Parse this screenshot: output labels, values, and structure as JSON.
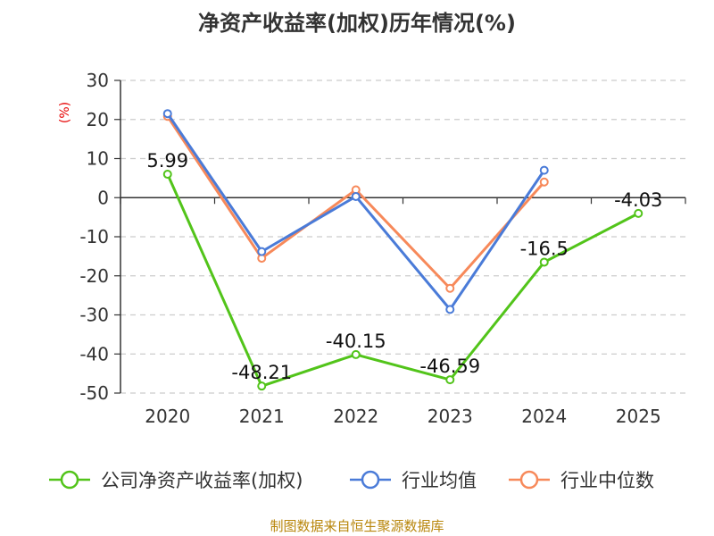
{
  "chart_data": {
    "type": "line",
    "title": "净资产收益率(加权)历年情况(%)",
    "ylabel": "(%)",
    "xlabel": "",
    "categories": [
      "2020",
      "2021",
      "2022",
      "2023",
      "2024",
      "2025"
    ],
    "ylim": [
      -50,
      30
    ],
    "yticks": [
      30,
      20,
      10,
      0,
      -10,
      -20,
      -30,
      -40,
      -50
    ],
    "grid": true,
    "legend_position": "bottom",
    "series": [
      {
        "name": "公司净资产收益率(加权)",
        "color": "#52c41a",
        "values": [
          5.99,
          -48.21,
          -40.15,
          -46.59,
          -16.5,
          -4.03
        ],
        "labels": [
          "5.99",
          "-48.21",
          "-40.15",
          "-46.59",
          "-16.5",
          "-4.03"
        ]
      },
      {
        "name": "行业均值",
        "color": "#4a7bd8",
        "values": [
          21.5,
          -13.8,
          0.3,
          -28.6,
          7.0,
          null
        ]
      },
      {
        "name": "行业中位数",
        "color": "#f7895a",
        "values": [
          20.8,
          -15.5,
          2.0,
          -23.2,
          4.0,
          null
        ]
      }
    ]
  },
  "source": "制图数据来自恒生聚源数据库"
}
